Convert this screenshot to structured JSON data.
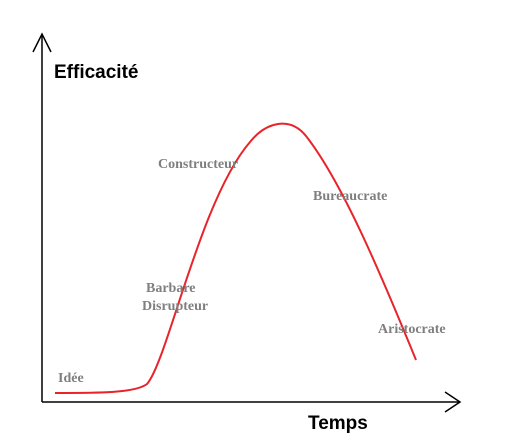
{
  "axes": {
    "y_label": "Efficacité",
    "x_label": "Temps"
  },
  "stages": [
    {
      "label": "Idée"
    },
    {
      "label": "Barbare"
    },
    {
      "label": "Disrupteur"
    },
    {
      "label": "Constructeur"
    },
    {
      "label": "Bureaucrate"
    },
    {
      "label": "Aristocrate"
    }
  ]
}
